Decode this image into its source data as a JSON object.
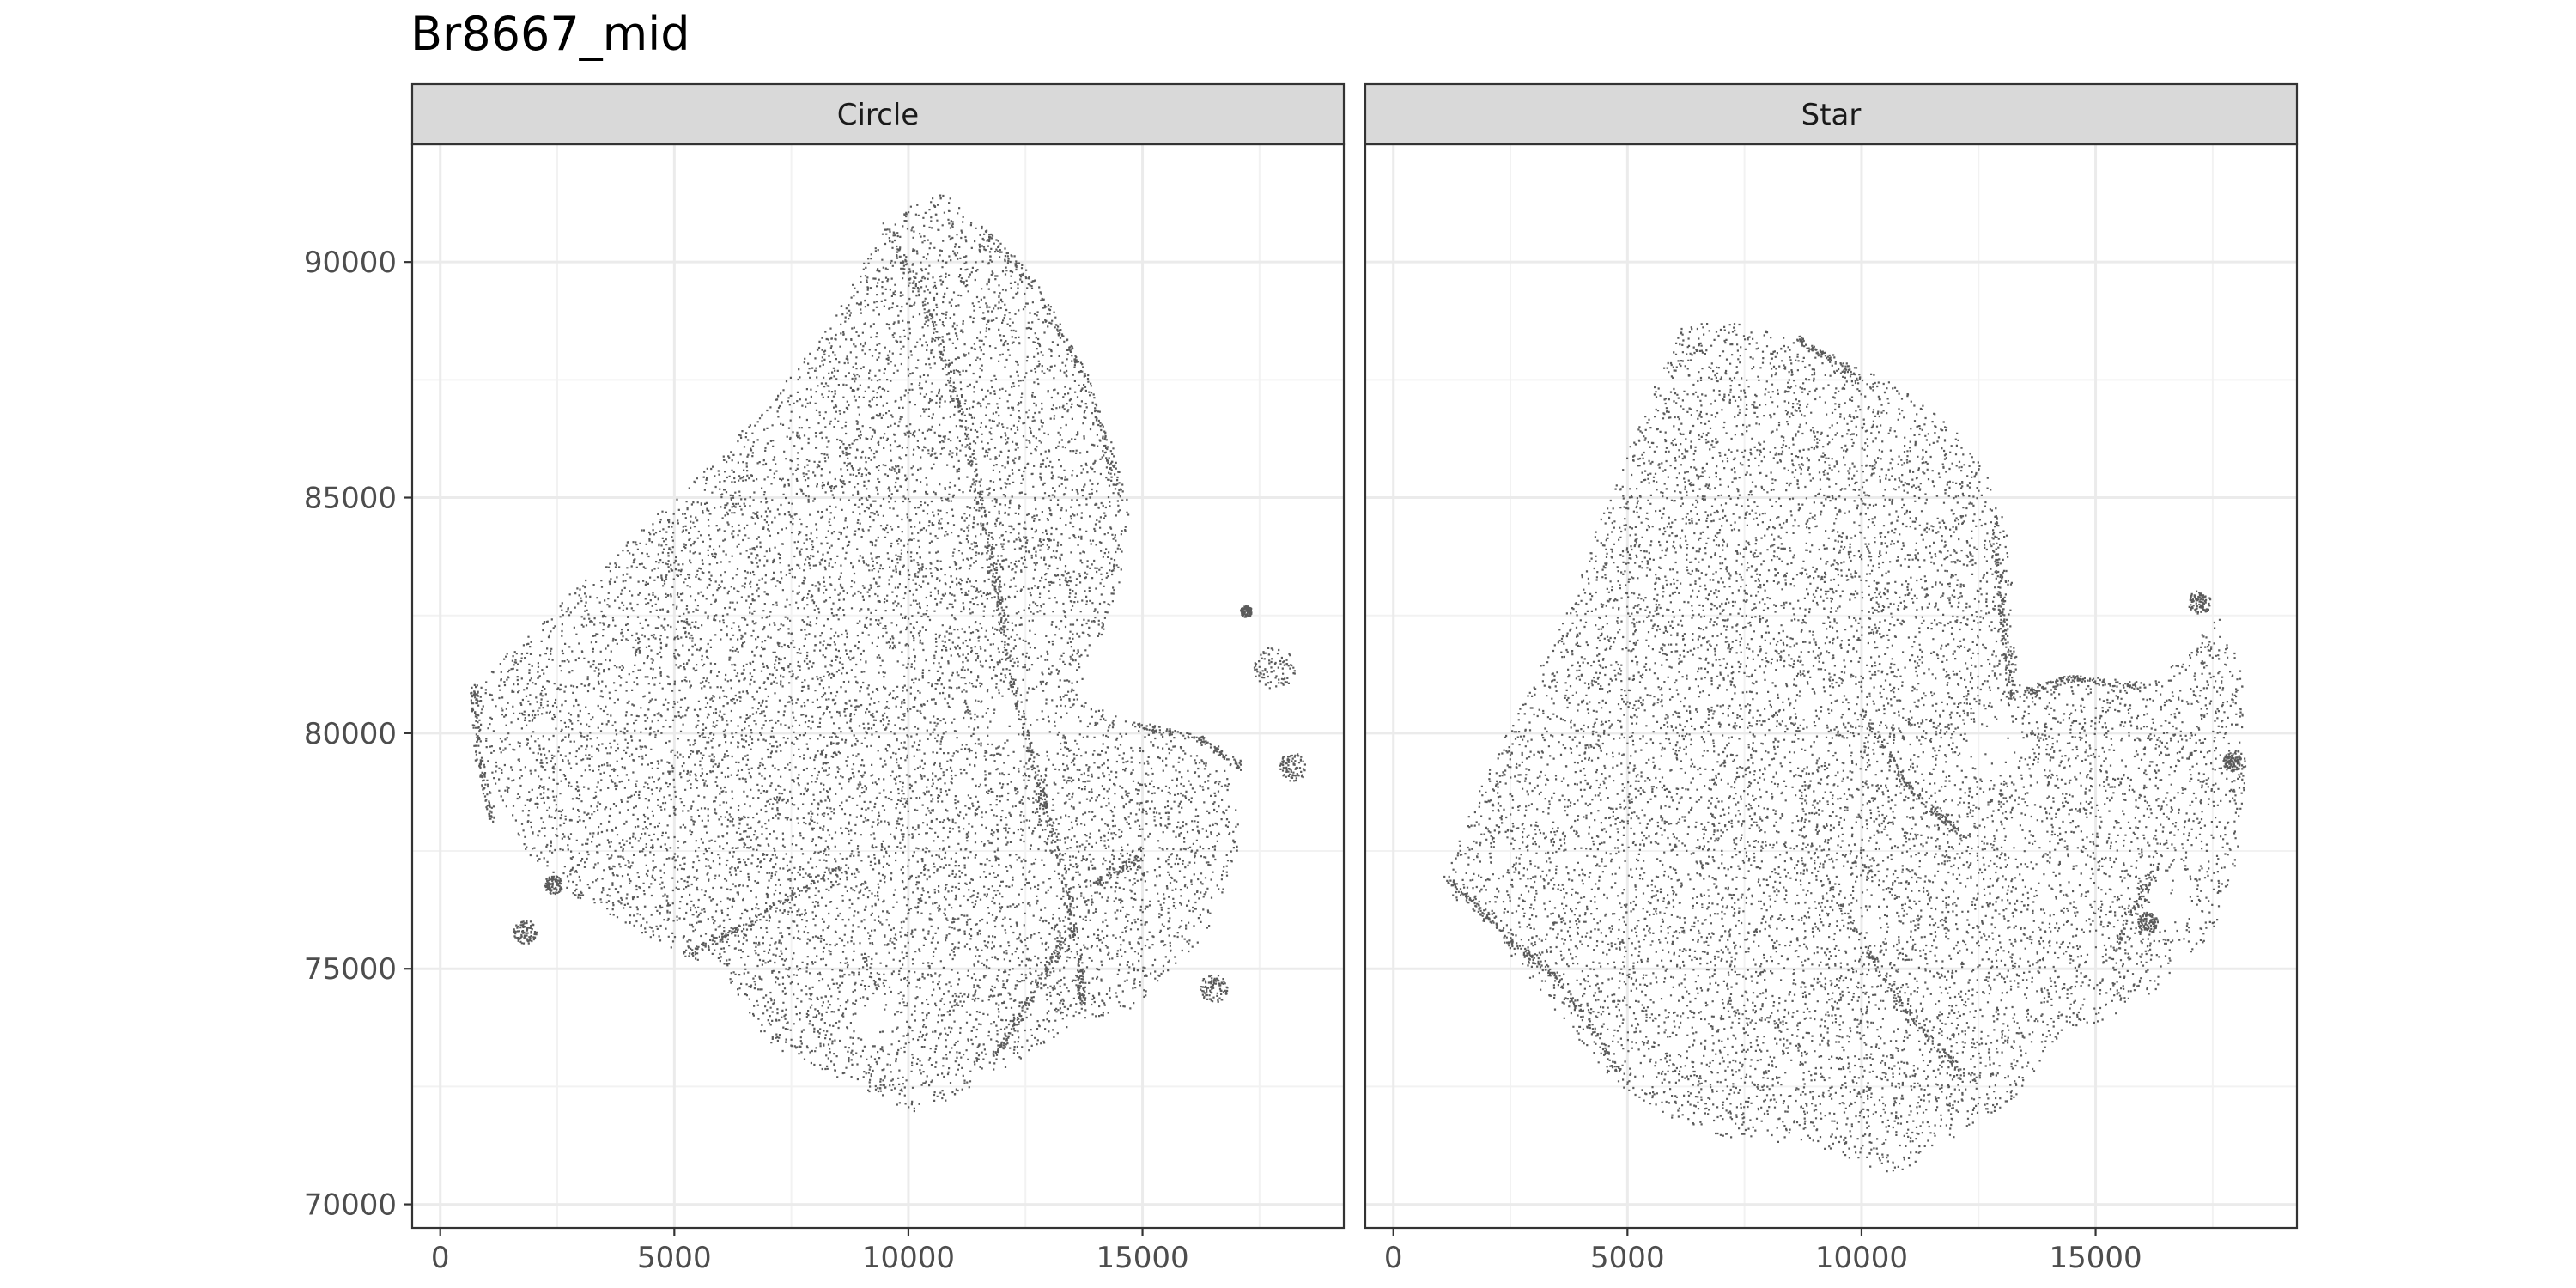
{
  "chart_data": {
    "type": "scatter",
    "title": "Br8667_mid",
    "xlabel": "",
    "ylabel": "",
    "xlim": [
      -600,
      19300
    ],
    "ylim": [
      69500,
      92500
    ],
    "x_ticks": [
      0,
      5000,
      10000,
      15000
    ],
    "y_ticks": [
      70000,
      75000,
      80000,
      85000,
      90000
    ],
    "grid": true,
    "point_color": "#5a5a5a",
    "panel_border_color": "#333333",
    "strip_fill": "#d9d9d9",
    "facets": [
      {
        "label": "Circle",
        "outline": [
          [
            700,
            81000
          ],
          [
            1500,
            81800
          ],
          [
            3000,
            83200
          ],
          [
            5000,
            85000
          ],
          [
            7000,
            87000
          ],
          [
            8500,
            89000
          ],
          [
            9300,
            90500
          ],
          [
            10000,
            91200
          ],
          [
            10800,
            91500
          ],
          [
            12300,
            89800
          ],
          [
            13500,
            88200
          ],
          [
            14300,
            86300
          ],
          [
            14700,
            84800
          ],
          [
            14500,
            83200
          ],
          [
            14000,
            81800
          ],
          [
            13600,
            80800
          ],
          [
            14800,
            80200
          ],
          [
            15800,
            79800
          ],
          [
            16800,
            79200
          ],
          [
            17100,
            77800
          ],
          [
            16400,
            75800
          ],
          [
            15600,
            75000
          ],
          [
            14800,
            74200
          ],
          [
            13500,
            73800
          ],
          [
            12200,
            73000
          ],
          [
            10200,
            71900
          ],
          [
            8500,
            72700
          ],
          [
            7000,
            73400
          ],
          [
            6000,
            75000
          ],
          [
            5200,
            75300
          ],
          [
            3800,
            76000
          ],
          [
            2800,
            76600
          ],
          [
            1800,
            77500
          ],
          [
            1200,
            78800
          ],
          [
            800,
            80000
          ]
        ],
        "holes": [
          {
            "center": [
              12400,
              80300
            ],
            "radius": 700
          },
          {
            "center": [
              9300,
              73900
            ],
            "radius": 400
          }
        ],
        "islands": [
          {
            "center": [
              17800,
              81400
            ],
            "radius": 450
          },
          {
            "center": [
              18200,
              79300
            ],
            "radius": 300
          },
          {
            "center": [
              17200,
              82600
            ],
            "radius": 120
          },
          {
            "center": [
              1800,
              75800
            ],
            "radius": 250
          },
          {
            "center": [
              2400,
              76800
            ],
            "radius": 200
          },
          {
            "center": [
              16500,
              74600
            ],
            "radius": 300
          }
        ],
        "features": [
          [
            [
              9500,
              90800
            ],
            [
              10600,
              88500
            ],
            [
              11300,
              86000
            ],
            [
              11800,
              83500
            ],
            [
              12100,
              81600
            ],
            [
              12600,
              79500
            ],
            [
              13200,
              77500
            ],
            [
              13600,
              75500
            ],
            [
              13700,
              74200
            ]
          ],
          [
            [
              11500,
              90800
            ],
            [
              12700,
              89500
            ],
            [
              13800,
              87500
            ],
            [
              14500,
              85000
            ]
          ],
          [
            [
              700,
              81000
            ],
            [
              800,
              79500
            ],
            [
              1100,
              78200
            ]
          ],
          [
            [
              5200,
              75300
            ],
            [
              6600,
              76000
            ],
            [
              8500,
              77200
            ]
          ],
          [
            [
              11800,
              73100
            ],
            [
              12600,
              74400
            ],
            [
              13400,
              75800
            ]
          ],
          [
            [
              14000,
              76800
            ],
            [
              14900,
              77400
            ]
          ],
          [
            [
              14800,
              80200
            ],
            [
              16200,
              79900
            ],
            [
              17100,
              79300
            ]
          ]
        ]
      },
      {
        "label": "Star",
        "outline": [
          [
            1000,
            77000
          ],
          [
            2000,
            79200
          ],
          [
            3400,
            82000
          ],
          [
            4700,
            85300
          ],
          [
            5700,
            87700
          ],
          [
            6200,
            88800
          ],
          [
            7600,
            88700
          ],
          [
            9100,
            88200
          ],
          [
            10700,
            87400
          ],
          [
            12000,
            86500
          ],
          [
            12800,
            85300
          ],
          [
            13200,
            83800
          ],
          [
            13200,
            82300
          ],
          [
            13500,
            80900
          ],
          [
            14500,
            81200
          ],
          [
            16000,
            81000
          ],
          [
            16800,
            81600
          ],
          [
            17700,
            82600
          ],
          [
            18100,
            81300
          ],
          [
            18200,
            79300
          ],
          [
            18000,
            77300
          ],
          [
            17500,
            75800
          ],
          [
            16200,
            74500
          ],
          [
            15300,
            74000
          ],
          [
            14200,
            73600
          ],
          [
            13300,
            72300
          ],
          [
            11600,
            71200
          ],
          [
            10700,
            70600
          ],
          [
            8800,
            71300
          ],
          [
            7200,
            71400
          ],
          [
            5800,
            71900
          ],
          [
            4600,
            72700
          ],
          [
            3300,
            74300
          ],
          [
            2100,
            75800
          ],
          [
            1300,
            76500
          ]
        ],
        "holes": [
          {
            "center": [
              12800,
              79800
            ],
            "radius": 600
          },
          {
            "center": [
              16600,
              76400
            ],
            "radius": 500
          }
        ],
        "islands": [
          {
            "center": [
              17200,
              82800
            ],
            "radius": 250
          },
          {
            "center": [
              17900,
              79400
            ],
            "radius": 200
          },
          {
            "center": [
              16100,
              76000
            ],
            "radius": 220
          }
        ],
        "features": [
          [
            [
              1100,
              77000
            ],
            [
              2400,
              75700
            ],
            [
              3600,
              74700
            ],
            [
              4800,
              72800
            ]
          ],
          [
            [
              8600,
              88400
            ],
            [
              10000,
              87500
            ]
          ],
          [
            [
              12800,
              84600
            ],
            [
              13000,
              82500
            ],
            [
              13200,
              80700
            ]
          ],
          [
            [
              13500,
              80900
            ],
            [
              14500,
              81200
            ],
            [
              16000,
              81000
            ]
          ],
          [
            [
              9500,
              76400
            ],
            [
              10800,
              74300
            ],
            [
              12200,
              72700
            ]
          ],
          [
            [
              10000,
              80500
            ],
            [
              11000,
              78800
            ],
            [
              12200,
              77800
            ]
          ],
          [
            [
              15400,
              75500
            ],
            [
              16300,
              77200
            ]
          ]
        ]
      }
    ]
  }
}
